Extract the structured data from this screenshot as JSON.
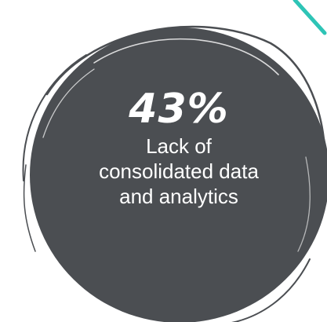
{
  "stat": {
    "value": "43%",
    "label": "Lack of consolidated data and analytics"
  },
  "colors": {
    "circle_fill": "#4b4e52",
    "circle_stroke": "#4b4e52",
    "text": "#ffffff",
    "accent": "#2ec4b6"
  }
}
